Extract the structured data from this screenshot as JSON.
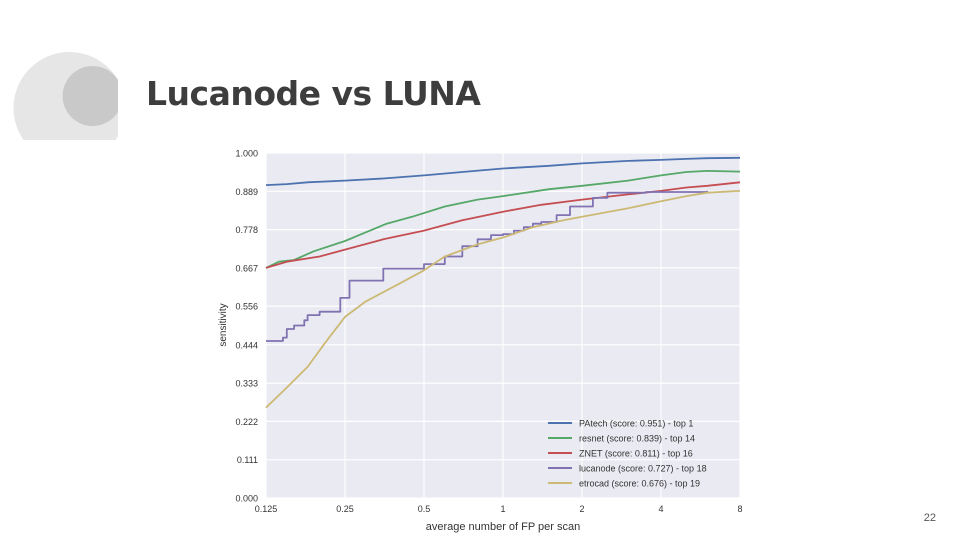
{
  "slide": {
    "title": "Lucanode vs LUNA",
    "page_number": "22"
  },
  "chart_data": {
    "type": "line",
    "title": "",
    "xlabel": "average number of FP per scan",
    "ylabel": "sensitivity",
    "x_scale": "log2",
    "xlim": [
      0.125,
      8
    ],
    "ylim": [
      0,
      1
    ],
    "x_ticks": [
      0.125,
      0.25,
      0.5,
      1,
      2,
      4,
      8
    ],
    "x_tick_labels": [
      "0.125",
      "0.25",
      "0.5",
      "1",
      "2",
      "4",
      "8"
    ],
    "y_ticks": [
      0,
      0.111,
      0.222,
      0.333,
      0.444,
      0.556,
      0.667,
      0.778,
      0.889,
      1.0
    ],
    "y_tick_labels": [
      "0.000",
      "0.111",
      "0.222",
      "0.333",
      "0.444",
      "0.556",
      "0.667",
      "0.778",
      "0.889",
      "1.000"
    ],
    "grid": true,
    "legend_position": "bottom-right",
    "background": "#eaeaf2",
    "series": [
      {
        "name": "PAtech (score: 0.951) - top 1",
        "color": "#4c72b0",
        "step": false,
        "points": [
          [
            0.125,
            0.907
          ],
          [
            0.15,
            0.91
          ],
          [
            0.18,
            0.915
          ],
          [
            0.25,
            0.92
          ],
          [
            0.35,
            0.926
          ],
          [
            0.5,
            0.935
          ],
          [
            0.7,
            0.945
          ],
          [
            1,
            0.955
          ],
          [
            1.5,
            0.963
          ],
          [
            2,
            0.97
          ],
          [
            3,
            0.977
          ],
          [
            4,
            0.98
          ],
          [
            5,
            0.983
          ],
          [
            6,
            0.985
          ],
          [
            8,
            0.986
          ]
        ]
      },
      {
        "name": "resnet (score: 0.839) - top 14",
        "color": "#55a868",
        "step": false,
        "points": [
          [
            0.125,
            0.667
          ],
          [
            0.14,
            0.685
          ],
          [
            0.16,
            0.69
          ],
          [
            0.19,
            0.715
          ],
          [
            0.25,
            0.745
          ],
          [
            0.3,
            0.77
          ],
          [
            0.36,
            0.795
          ],
          [
            0.45,
            0.815
          ],
          [
            0.6,
            0.845
          ],
          [
            0.8,
            0.865
          ],
          [
            1,
            0.875
          ],
          [
            1.5,
            0.895
          ],
          [
            2,
            0.905
          ],
          [
            3,
            0.92
          ],
          [
            4,
            0.935
          ],
          [
            5,
            0.945
          ],
          [
            6,
            0.948
          ],
          [
            8,
            0.946
          ]
        ]
      },
      {
        "name": "ZNET (score: 0.811) - top 16",
        "color": "#c44e52",
        "step": false,
        "points": [
          [
            0.125,
            0.667
          ],
          [
            0.15,
            0.685
          ],
          [
            0.2,
            0.7
          ],
          [
            0.25,
            0.72
          ],
          [
            0.35,
            0.75
          ],
          [
            0.5,
            0.775
          ],
          [
            0.7,
            0.805
          ],
          [
            1,
            0.83
          ],
          [
            1.4,
            0.85
          ],
          [
            2,
            0.865
          ],
          [
            3,
            0.88
          ],
          [
            4,
            0.89
          ],
          [
            5,
            0.9
          ],
          [
            6,
            0.905
          ],
          [
            8,
            0.915
          ]
        ]
      },
      {
        "name": "lucanode (score: 0.727) - top 18",
        "color": "#8172b2",
        "step": true,
        "points": [
          [
            0.125,
            0.455
          ],
          [
            0.14,
            0.455
          ],
          [
            0.145,
            0.465
          ],
          [
            0.15,
            0.49
          ],
          [
            0.16,
            0.5
          ],
          [
            0.175,
            0.515
          ],
          [
            0.18,
            0.53
          ],
          [
            0.2,
            0.54
          ],
          [
            0.24,
            0.58
          ],
          [
            0.26,
            0.63
          ],
          [
            0.35,
            0.665
          ],
          [
            0.5,
            0.678
          ],
          [
            0.6,
            0.7
          ],
          [
            0.7,
            0.73
          ],
          [
            0.8,
            0.75
          ],
          [
            0.9,
            0.762
          ],
          [
            1,
            0.765
          ],
          [
            1.1,
            0.775
          ],
          [
            1.2,
            0.785
          ],
          [
            1.3,
            0.795
          ],
          [
            1.4,
            0.8
          ],
          [
            1.6,
            0.82
          ],
          [
            1.8,
            0.845
          ],
          [
            2.2,
            0.87
          ],
          [
            2.5,
            0.885
          ],
          [
            3.5,
            0.887
          ],
          [
            6,
            0.89
          ]
        ]
      },
      {
        "name": "etrocad (score: 0.676) - top 19",
        "color": "#ccb974",
        "step": false,
        "points": [
          [
            0.125,
            0.262
          ],
          [
            0.15,
            0.32
          ],
          [
            0.18,
            0.38
          ],
          [
            0.21,
            0.45
          ],
          [
            0.25,
            0.525
          ],
          [
            0.3,
            0.57
          ],
          [
            0.4,
            0.62
          ],
          [
            0.5,
            0.66
          ],
          [
            0.6,
            0.7
          ],
          [
            0.8,
            0.735
          ],
          [
            1,
            0.755
          ],
          [
            1.3,
            0.785
          ],
          [
            1.7,
            0.805
          ],
          [
            2,
            0.815
          ],
          [
            3,
            0.84
          ],
          [
            4,
            0.86
          ],
          [
            5,
            0.875
          ],
          [
            6,
            0.885
          ],
          [
            8,
            0.89
          ]
        ]
      }
    ]
  }
}
